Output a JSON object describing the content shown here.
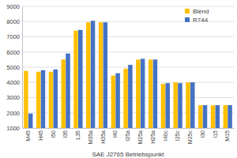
{
  "chart_data": {
    "type": "bar",
    "x_label": "SAE J2765 Betriebspunkt",
    "categories": [
      "M45",
      "H45",
      "I50",
      "I35",
      "L35",
      "M35a",
      "H35a",
      "I40",
      "I25a",
      "M25a",
      "H25a",
      "I40c",
      "I25c",
      "M25c",
      "I30",
      "I15",
      "M15"
    ],
    "series": [
      {
        "name": "Blend",
        "color": "#ffc000",
        "values": [
          4750,
          4700,
          4700,
          5500,
          7400,
          7950,
          7950,
          4450,
          4900,
          5500,
          5500,
          3900,
          4000,
          4000,
          2500,
          2500,
          2500
        ]
      },
      {
        "name": "R744",
        "color": "#4472c4",
        "values": [
          1950,
          4800,
          4850,
          5900,
          7450,
          8050,
          7950,
          4600,
          5150,
          5550,
          5500,
          3950,
          3950,
          4000,
          2500,
          2500,
          2500
        ]
      }
    ],
    "ylim": [
      1000,
      9000
    ],
    "yticks": [
      1000,
      2000,
      3000,
      4000,
      5000,
      6000,
      7000,
      8000,
      9000
    ],
    "grid": true,
    "legend": "upper right"
  }
}
